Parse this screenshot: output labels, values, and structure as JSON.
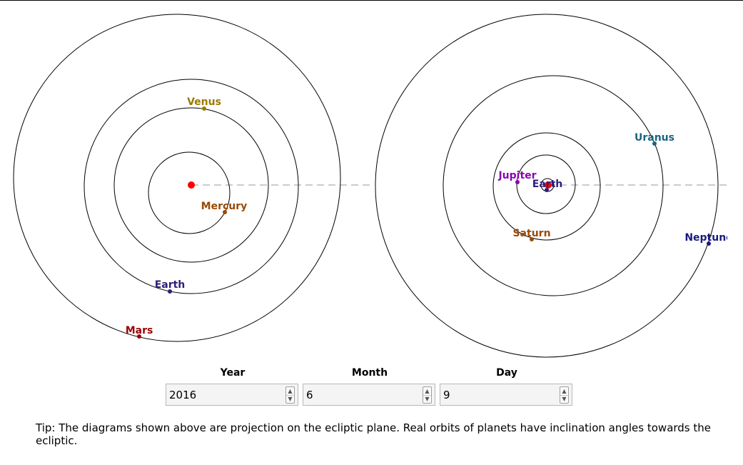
{
  "colors": {
    "sun": "#ff0000",
    "orbit": "#000000",
    "ecliptic_line": "#bbbbbb",
    "mercury": "#9a4a05",
    "venus": "#9a7a00",
    "earth": "#2e1f7a",
    "mars": "#9a0000",
    "jupiter": "#8a00b0",
    "saturn": "#9a4a05",
    "uranus": "#1a6480",
    "neptune": "#1a1a80"
  },
  "inner_diagram": {
    "planets": [
      {
        "label": "Venus",
        "color": "venus"
      },
      {
        "label": "Mercury",
        "color": "mercury"
      },
      {
        "label": "Earth",
        "color": "earth"
      },
      {
        "label": "Mars",
        "color": "mars"
      }
    ]
  },
  "outer_diagram": {
    "planets": [
      {
        "label": "Uranus",
        "color": "uranus"
      },
      {
        "label": "Jupiter",
        "color": "jupiter"
      },
      {
        "label": "Earth",
        "color": "earth"
      },
      {
        "label": "Saturn",
        "color": "saturn"
      },
      {
        "label": "Neptune",
        "color": "neptune"
      }
    ]
  },
  "date_controls": {
    "year": {
      "label": "Year",
      "value": "2016"
    },
    "month": {
      "label": "Month",
      "value": "6"
    },
    "day": {
      "label": "Day",
      "value": "9"
    }
  },
  "tip": "Tip: The diagrams shown above are projection on the ecliptic plane. Real orbits of planets have inclination angles towards the ecliptic."
}
